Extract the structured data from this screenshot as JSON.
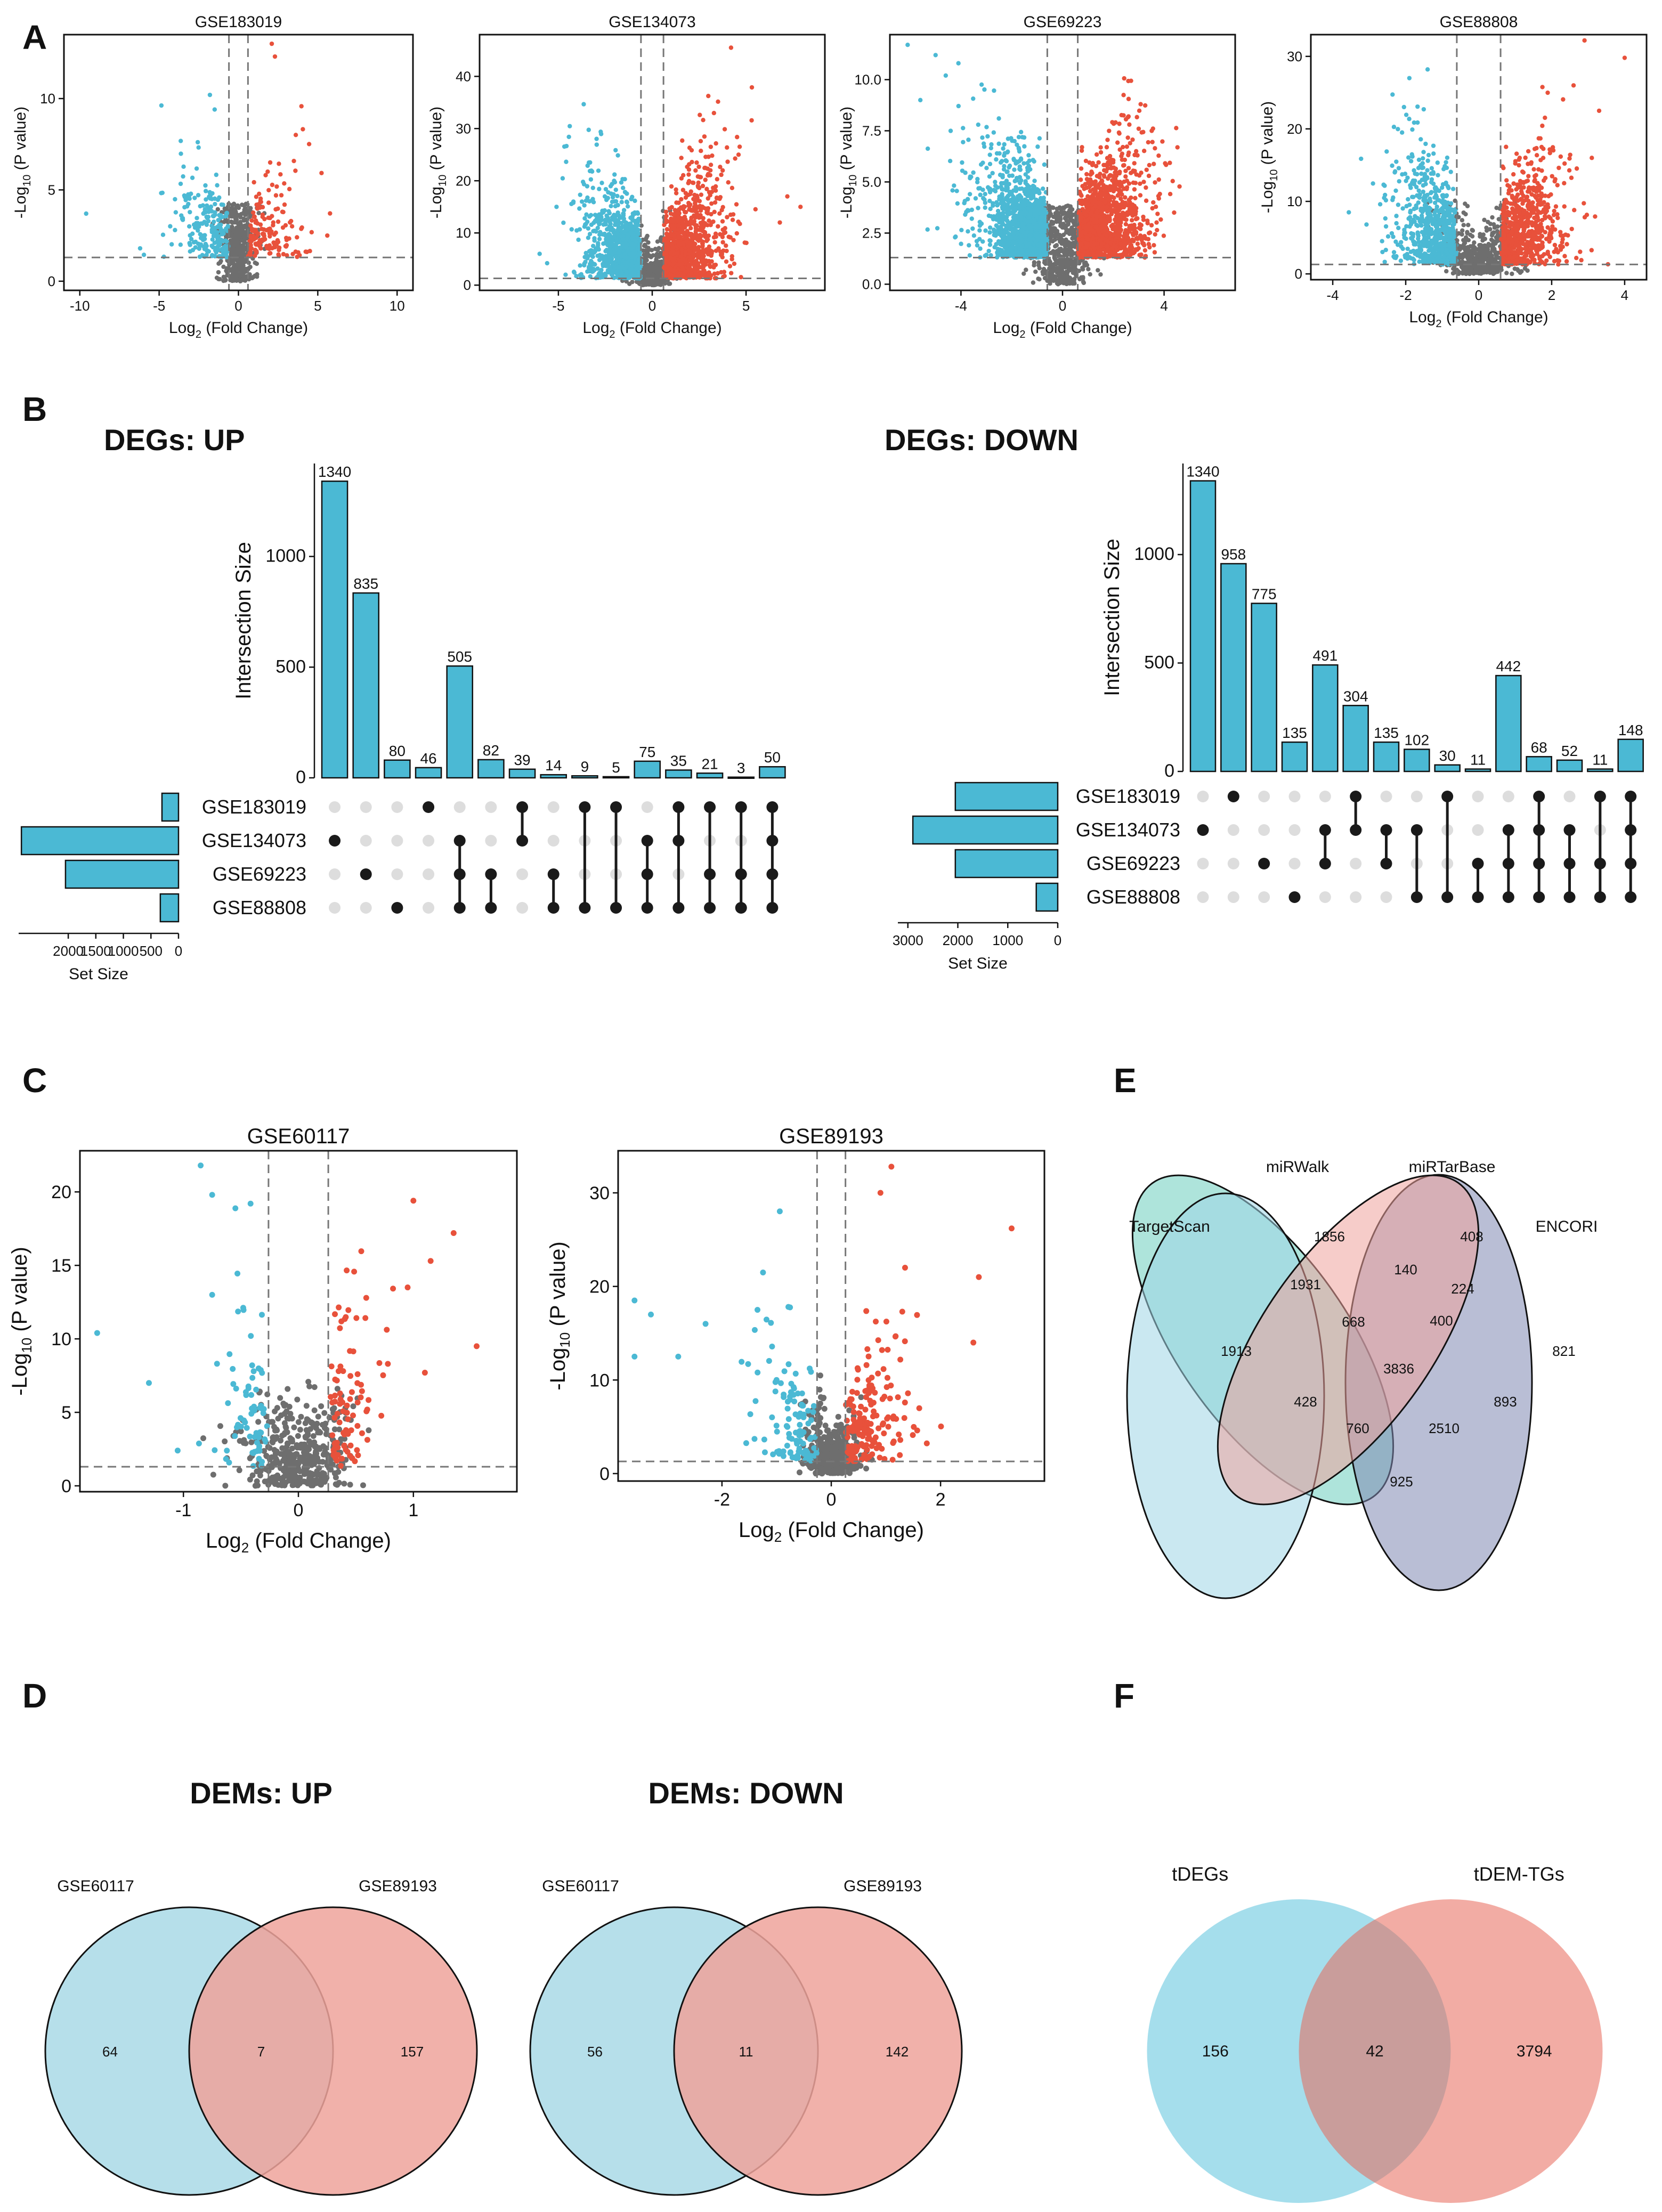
{
  "panel_labels": [
    "A",
    "B",
    "C",
    "D",
    "E",
    "F"
  ],
  "chart_data": [
    {
      "id": "A1",
      "type": "scatter",
      "subtype": "volcano",
      "title": "GSE183019",
      "xlabel": {
        "pre": "Log",
        "sub": "2",
        "post": " (Fold Change)"
      },
      "ylabel": {
        "pre": "-Log",
        "sub": "10",
        "post": " (P value)"
      },
      "xlim": [
        -11,
        11
      ],
      "ylim": [
        -0.5,
        13.5
      ],
      "xticks": [
        -10,
        -5,
        0,
        5,
        10
      ],
      "yticks": [
        0,
        5,
        10
      ],
      "fc_threshold": 0.6,
      "p_threshold": 1.3,
      "seed": 11,
      "n_up": 160,
      "n_down": 220,
      "n_ns": 500,
      "spread": 3.0,
      "outliers_up": [
        [
          2.1,
          13.0
        ],
        [
          2.3,
          12.3
        ],
        [
          2.4,
          2.0
        ],
        [
          3.0,
          1.9
        ],
        [
          5.6,
          2.5
        ],
        [
          2.0,
          6.5
        ]
      ],
      "outliers_down": [
        [
          -9.6,
          3.7
        ],
        [
          -6.2,
          1.8
        ],
        [
          -4.0,
          2.8
        ],
        [
          -1.8,
          10.2
        ],
        [
          -1.5,
          9.4
        ],
        [
          -2.9,
          2.6
        ]
      ]
    },
    {
      "id": "A2",
      "type": "scatter",
      "subtype": "volcano",
      "title": "GSE134073",
      "xlabel": {
        "pre": "Log",
        "sub": "2",
        "post": " (Fold Change)"
      },
      "ylabel": {
        "pre": "-Log",
        "sub": "10",
        "post": " (P value)"
      },
      "xlim": [
        -9.2,
        9.2
      ],
      "ylim": [
        -1,
        48
      ],
      "xticks": [
        -5,
        0,
        5
      ],
      "yticks": [
        0,
        10,
        20,
        30,
        40
      ],
      "fc_threshold": 0.6,
      "p_threshold": 1.3,
      "seed": 23,
      "n_up": 1100,
      "n_down": 900,
      "n_ns": 500,
      "spread": 2.6,
      "outliers_up": [
        [
          4.2,
          45.5
        ],
        [
          4.6,
          25.0
        ],
        [
          7.2,
          17.0
        ],
        [
          7.9,
          15.0
        ],
        [
          6.8,
          12.0
        ],
        [
          3.1,
          22.0
        ]
      ],
      "outliers_down": [
        [
          -5.1,
          15.0
        ],
        [
          -4.2,
          16.0
        ],
        [
          -6.0,
          6.0
        ],
        [
          -2.5,
          12.5
        ],
        [
          -5.6,
          4.2
        ]
      ]
    },
    {
      "id": "A3",
      "type": "scatter",
      "subtype": "volcano",
      "title": "GSE69223",
      "xlabel": {
        "pre": "Log",
        "sub": "2",
        "post": " (Fold Change)"
      },
      "ylabel": {
        "pre": "-Log",
        "sub": "10",
        "post": " (P value)"
      },
      "xlim": [
        -6.8,
        6.8
      ],
      "ylim": [
        -0.3,
        12.2
      ],
      "xticks": [
        -4,
        0,
        4
      ],
      "yticks": [
        0,
        2.5,
        5,
        7.5,
        10
      ],
      "ytick_labels": [
        "0.0",
        "2.5",
        "5.0",
        "7.5",
        "10.0"
      ],
      "fc_threshold": 0.6,
      "p_threshold": 1.3,
      "seed": 37,
      "n_up": 1400,
      "n_down": 1400,
      "n_ns": 500,
      "spread": 2.2,
      "outliers_up": [
        [
          3.0,
          7.6
        ],
        [
          2.9,
          6.5
        ],
        [
          3.2,
          5.0
        ],
        [
          2.6,
          8.2
        ]
      ],
      "outliers_down": [
        [
          -6.1,
          11.7
        ],
        [
          -5.0,
          11.2
        ],
        [
          -4.1,
          10.8
        ],
        [
          -5.6,
          9.0
        ],
        [
          -4.6,
          10.2
        ]
      ]
    },
    {
      "id": "A4",
      "type": "scatter",
      "subtype": "volcano",
      "title": "GSE88808",
      "xlabel": {
        "pre": "Log",
        "sub": "2",
        "post": " (Fold Change)"
      },
      "ylabel": {
        "pre": "-Log",
        "sub": "10",
        "post": " (P value)"
      },
      "xlim": [
        -4.6,
        4.6
      ],
      "ylim": [
        -0.8,
        33
      ],
      "xticks": [
        -4,
        -2,
        0,
        2,
        4
      ],
      "yticks": [
        0,
        10,
        20,
        30
      ],
      "fc_threshold": 0.6,
      "p_threshold": 1.3,
      "seed": 53,
      "n_up": 700,
      "n_down": 700,
      "n_ns": 500,
      "spread": 1.4,
      "outliers_up": [
        [
          2.9,
          32.2
        ],
        [
          4.0,
          29.8
        ],
        [
          3.3,
          22.5
        ],
        [
          3.1,
          16.0
        ],
        [
          2.6,
          26.0
        ]
      ],
      "outliers_down": [
        [
          -2.7,
          9.6
        ],
        [
          -2.3,
          14.0
        ],
        [
          -2.1,
          19.5
        ],
        [
          -1.9,
          27.0
        ],
        [
          -1.4,
          28.2
        ]
      ]
    },
    {
      "id": "B-up",
      "type": "upset",
      "title": "DEGs: UP",
      "ylabel": "Intersection Size",
      "setsize_label": "Set Size",
      "sets": [
        "GSE183019",
        "GSE134073",
        "GSE69223",
        "GSE88808"
      ],
      "set_sizes": [
        300,
        2850,
        2050,
        330
      ],
      "setsize_ticks": [
        2000,
        1500,
        1000,
        500,
        0
      ],
      "setsize_tick_labels": [
        "2000",
        "1500",
        "1000",
        "500",
        "0"
      ],
      "setsize_max": 2900,
      "ylim": [
        0,
        1420
      ],
      "yticks": [
        0,
        500,
        1000
      ],
      "intersections": [
        {
          "value": 1340,
          "sets": [
            1
          ]
        },
        {
          "value": 835,
          "sets": [
            2
          ]
        },
        {
          "value": 80,
          "sets": [
            3
          ]
        },
        {
          "value": 46,
          "sets": [
            0
          ]
        },
        {
          "value": 505,
          "sets": [
            1,
            2,
            3
          ]
        },
        {
          "value": 82,
          "sets": [
            2,
            3
          ]
        },
        {
          "value": 39,
          "sets": [
            0,
            1
          ]
        },
        {
          "value": 14,
          "sets": [
            2,
            3
          ]
        },
        {
          "value": 9,
          "sets": [
            0,
            3
          ]
        },
        {
          "value": 5,
          "sets": [
            0,
            3
          ]
        },
        {
          "value": 75,
          "sets": [
            1,
            2,
            3
          ]
        },
        {
          "value": 35,
          "sets": [
            0,
            1,
            3
          ]
        },
        {
          "value": 21,
          "sets": [
            0,
            2,
            3
          ]
        },
        {
          "value": 3,
          "sets": [
            0,
            2,
            3
          ]
        },
        {
          "value": 50,
          "sets": [
            0,
            1,
            2,
            3
          ]
        }
      ]
    },
    {
      "id": "B-down",
      "type": "upset",
      "title": "DEGs: DOWN",
      "ylabel": "Intersection Size",
      "setsize_label": "Set Size",
      "sets": [
        "GSE183019",
        "GSE134073",
        "GSE69223",
        "GSE88808"
      ],
      "set_sizes": [
        2050,
        2900,
        2050,
        430
      ],
      "setsize_ticks": [
        3000,
        2000,
        1000,
        0
      ],
      "setsize_tick_labels": [
        "3000",
        "2000",
        "1000",
        "0"
      ],
      "setsize_max": 3200,
      "ylim": [
        0,
        1420
      ],
      "yticks": [
        0,
        500,
        1000
      ],
      "intersections": [
        {
          "value": 1340,
          "sets": [
            1
          ]
        },
        {
          "value": 958,
          "sets": [
            0
          ]
        },
        {
          "value": 775,
          "sets": [
            2
          ]
        },
        {
          "value": 135,
          "sets": [
            3
          ]
        },
        {
          "value": 491,
          "sets": [
            1,
            2
          ]
        },
        {
          "value": 304,
          "sets": [
            0,
            1
          ]
        },
        {
          "value": 135,
          "sets": [
            1,
            2
          ]
        },
        {
          "value": 102,
          "sets": [
            1,
            3
          ]
        },
        {
          "value": 30,
          "sets": [
            0,
            3
          ]
        },
        {
          "value": 11,
          "sets": [
            2,
            3
          ]
        },
        {
          "value": 442,
          "sets": [
            1,
            2,
            3
          ]
        },
        {
          "value": 68,
          "sets": [
            0,
            1,
            2,
            3
          ]
        },
        {
          "value": 52,
          "sets": [
            1,
            2,
            3
          ]
        },
        {
          "value": 11,
          "sets": [
            0,
            2,
            3
          ]
        },
        {
          "value": 148,
          "sets": [
            0,
            1,
            2,
            3
          ]
        }
      ]
    },
    {
      "id": "C1",
      "type": "scatter",
      "subtype": "volcano",
      "title": "GSE60117",
      "xlabel": {
        "pre": "Log",
        "sub": "2",
        "post": " (Fold Change)"
      },
      "ylabel": {
        "pre": "-Log",
        "sub": "10",
        "post": " (P value)"
      },
      "xlim": [
        -1.9,
        1.9
      ],
      "ylim": [
        -0.4,
        22.8
      ],
      "xticks": [
        -1,
        0,
        1
      ],
      "yticks": [
        0,
        5,
        10,
        15,
        20
      ],
      "fc_threshold": 0.26,
      "p_threshold": 1.3,
      "seed": 71,
      "n_up": 90,
      "n_down": 70,
      "n_ns": 420,
      "spread": 0.35,
      "outliers_up": [
        [
          1.0,
          19.4
        ],
        [
          1.35,
          17.2
        ],
        [
          1.55,
          9.5
        ],
        [
          1.15,
          15.3
        ],
        [
          0.95,
          13.5
        ],
        [
          1.1,
          7.7
        ]
      ],
      "outliers_down": [
        [
          -0.85,
          21.8
        ],
        [
          -1.75,
          10.4
        ],
        [
          -0.75,
          19.8
        ],
        [
          -0.75,
          13.0
        ],
        [
          -1.05,
          2.4
        ],
        [
          -1.3,
          7.0
        ]
      ]
    },
    {
      "id": "C2",
      "type": "scatter",
      "subtype": "volcano",
      "title": "GSE89193",
      "xlabel": {
        "pre": "Log",
        "sub": "2",
        "post": " (Fold Change)"
      },
      "ylabel": {
        "pre": "-Log",
        "sub": "10",
        "post": " (P value)"
      },
      "xlim": [
        -3.9,
        3.9
      ],
      "ylim": [
        -0.8,
        34.5
      ],
      "xticks": [
        -2,
        0,
        2
      ],
      "yticks": [
        0,
        10,
        20,
        30
      ],
      "fc_threshold": 0.26,
      "p_threshold": 1.3,
      "seed": 89,
      "n_up": 170,
      "n_down": 110,
      "n_ns": 420,
      "spread": 0.9,
      "outliers_up": [
        [
          1.1,
          32.8
        ],
        [
          0.9,
          30.0
        ],
        [
          3.3,
          26.2
        ],
        [
          1.35,
          22.0
        ],
        [
          2.7,
          21.0
        ],
        [
          2.6,
          14.0
        ]
      ],
      "outliers_down": [
        [
          -3.6,
          18.5
        ],
        [
          -3.3,
          17.0
        ],
        [
          -2.3,
          16.0
        ],
        [
          -1.35,
          17.5
        ],
        [
          -2.8,
          12.5
        ],
        [
          -3.6,
          12.5
        ]
      ]
    },
    {
      "id": "D-up",
      "type": "venn2",
      "title": "DEMs: UP",
      "sets": [
        "GSE60117",
        "GSE89193"
      ],
      "values": [
        64,
        7,
        157
      ]
    },
    {
      "id": "D-down",
      "type": "venn2",
      "title": "DEMs: DOWN",
      "sets": [
        "GSE60117",
        "GSE89193"
      ],
      "values": [
        56,
        11,
        142
      ]
    },
    {
      "id": "E",
      "type": "venn4",
      "sets": [
        "TargetScan",
        "miRWalk",
        "miRTarBase",
        "ENCORI"
      ],
      "regions": {
        "targetscan_only": 1913,
        "mirwalk_only": 1856,
        "mirtarbase_only": 408,
        "encori_only": 821,
        "ts_mw": 1931,
        "mw_mt": 140,
        "mt_en": 224,
        "ts_mw_mt": 668,
        "mw_mt_en": 400,
        "all": 3836,
        "ts_mt": 428,
        "mw_en": 893,
        "ts_mt_en": 760,
        "ts_mw_en": 2510,
        "ts_en": 925
      }
    },
    {
      "id": "F",
      "type": "venn2",
      "sets": [
        "tDEGs",
        "tDEM-TGs"
      ],
      "values": [
        156,
        42,
        3794
      ]
    }
  ],
  "colors": {
    "up": "#E8513B",
    "down": "#4BB9D4",
    "ns": "#6E6E6E",
    "bar": "#4BB9D4",
    "dot_on": "#1A1A1A",
    "dot_off": "#DDDDDD",
    "venn_blue": "#A9D9E6",
    "venn_red": "#EFA39B",
    "v4_ts": "#9ED6E6",
    "v4_mw": "#EEA39C",
    "v4_mt": "#6CCDBE",
    "v4_en": "#7F88B3",
    "tdegs": "#5BC3DD",
    "tdemtgs": "#E8675A"
  }
}
